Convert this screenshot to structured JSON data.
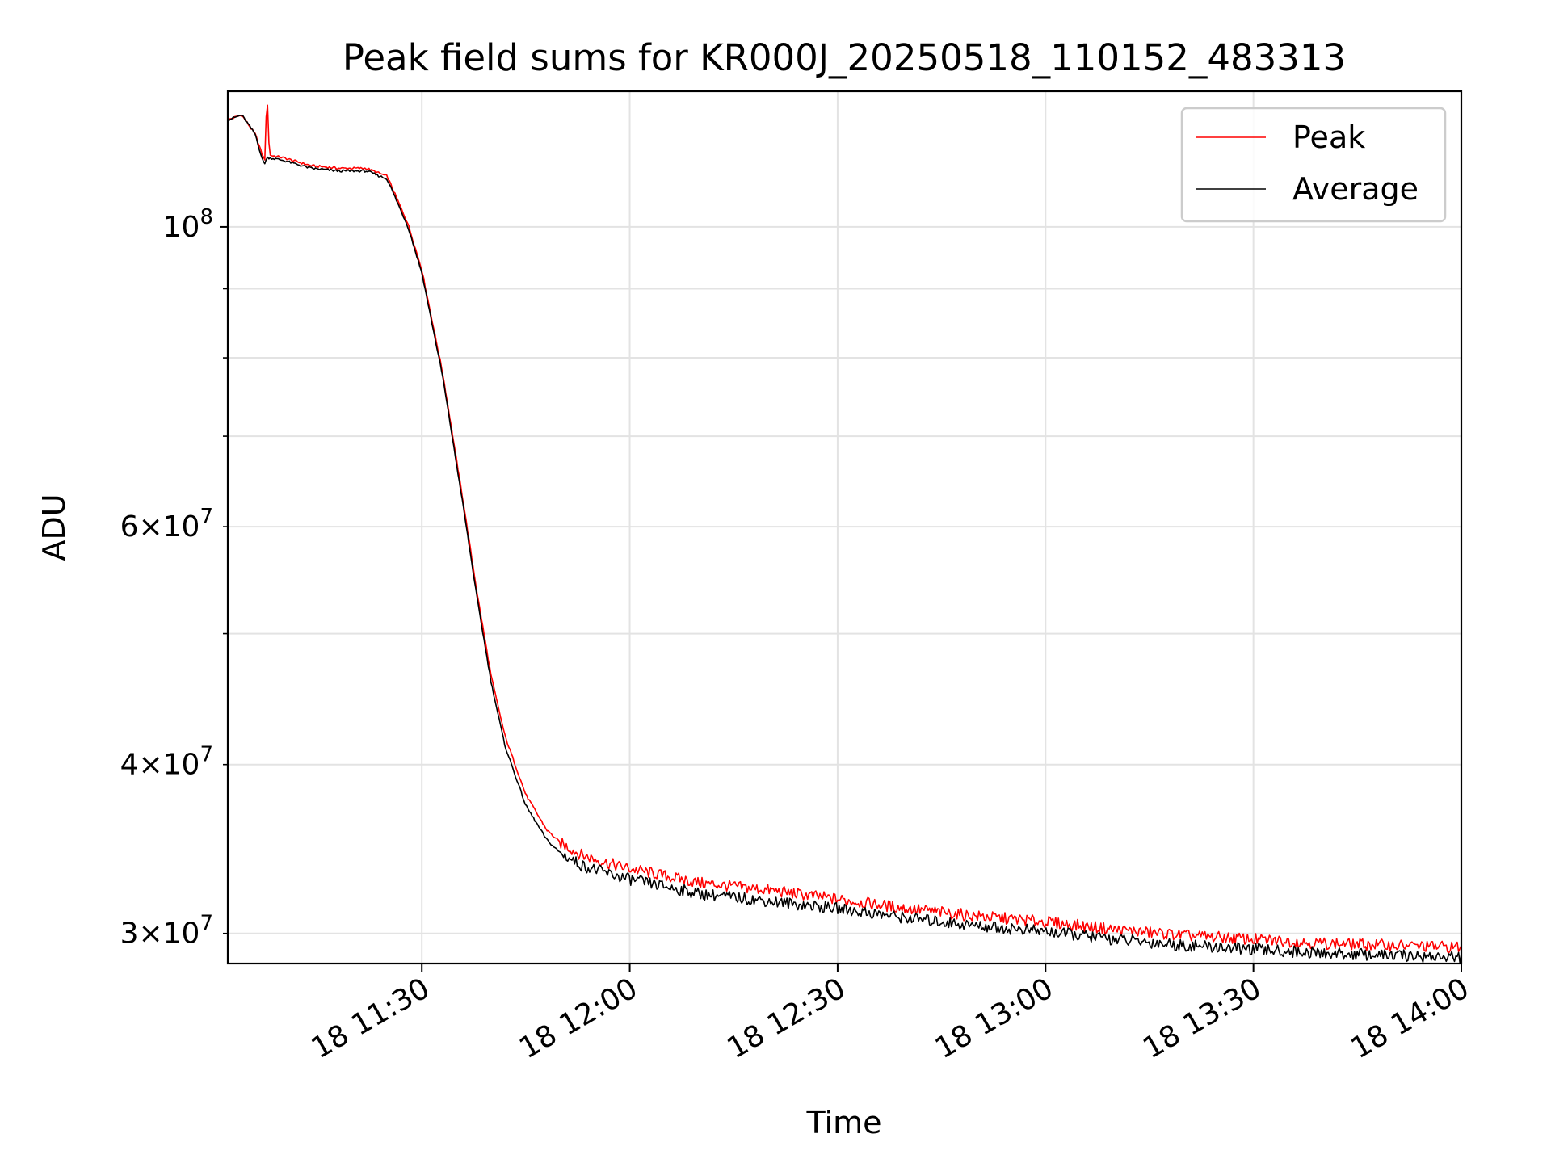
{
  "chart_data": {
    "type": "line",
    "title": "Peak field sums for KR000J_20250518_110152_483313",
    "xlabel": "Time",
    "ylabel": "ADU",
    "x_scale": "time",
    "y_scale": "log",
    "xlim": [
      "18 11:02",
      "18 14:00"
    ],
    "ylim": [
      28500000,
      126000000
    ],
    "x_ticks": [
      "18 11:30",
      "18 12:00",
      "18 12:30",
      "18 13:00",
      "18 13:30",
      "18 14:00"
    ],
    "x_tick_times": [
      "11:30",
      "12:00",
      "12:30",
      "13:00",
      "13:30",
      "14:00"
    ],
    "y_major_ticks": [
      {
        "value": 100000000,
        "base": "10",
        "exp": "8"
      }
    ],
    "y_minor_ticks": [
      {
        "value": 30000000,
        "mant": "3",
        "exp": "7"
      },
      {
        "value": 40000000,
        "mant": "4",
        "exp": "7"
      },
      {
        "value": 60000000,
        "mant": "6",
        "exp": "7"
      }
    ],
    "y_minor_unlabeled": [
      50000000,
      70000000,
      80000000,
      90000000
    ],
    "grid": true,
    "legend_position": "top-right",
    "series": [
      {
        "name": "Peak",
        "color": "#ff0000",
        "x": [
          "11:02",
          "11:04",
          "11:05",
          "11:06",
          "11:07",
          "11:07:20",
          "11:07:40",
          "11:08",
          "11:10",
          "11:14",
          "11:18",
          "11:22",
          "11:25",
          "11:28",
          "11:30",
          "11:33",
          "11:36",
          "11:38",
          "11:40",
          "11:42",
          "11:45",
          "11:48",
          "11:50",
          "11:53",
          "11:57",
          "12:00",
          "12:05",
          "12:10",
          "12:20",
          "12:30",
          "12:40",
          "12:50",
          "13:00",
          "13:10",
          "13:20",
          "13:30",
          "13:40",
          "13:50",
          "14:00"
        ],
        "y": [
          120000000,
          121000000,
          119000000,
          117000000,
          113000000,
          112000000,
          126000000,
          113000000,
          112500000,
          111000000,
          110500000,
          110500000,
          109000000,
          100500000,
          93000000,
          78000000,
          62500000,
          53500000,
          46500000,
          42000000,
          38000000,
          35800000,
          35000000,
          34300000,
          33800000,
          33500000,
          33100000,
          32700000,
          32300000,
          31800000,
          31300000,
          30900000,
          30600000,
          30200000,
          29900000,
          29700000,
          29500000,
          29400000,
          29300000
        ]
      },
      {
        "name": "Average",
        "color": "#000000",
        "x": [
          "11:02",
          "11:04",
          "11:05",
          "11:06",
          "11:07",
          "11:07:20",
          "11:07:40",
          "11:08",
          "11:10",
          "11:14",
          "11:18",
          "11:22",
          "11:25",
          "11:28",
          "11:30",
          "11:33",
          "11:36",
          "11:38",
          "11:40",
          "11:42",
          "11:45",
          "11:48",
          "11:50",
          "11:53",
          "11:57",
          "12:00",
          "12:05",
          "12:10",
          "12:20",
          "12:30",
          "12:40",
          "12:50",
          "13:00",
          "13:10",
          "13:20",
          "13:30",
          "13:40",
          "13:50",
          "14:00"
        ],
        "y": [
          120000000,
          121000000,
          119000000,
          117000000,
          112000000,
          111500000,
          112500000,
          112500000,
          112000000,
          110500000,
          110000000,
          110000000,
          108500000,
          100000000,
          92500000,
          77500000,
          62000000,
          53000000,
          46000000,
          41300000,
          37300000,
          35200000,
          34400000,
          33700000,
          33200000,
          32900000,
          32500000,
          32100000,
          31700000,
          31300000,
          30800000,
          30400000,
          30100000,
          29700000,
          29400000,
          29200000,
          29000000,
          28900000,
          28800000
        ]
      }
    ]
  }
}
